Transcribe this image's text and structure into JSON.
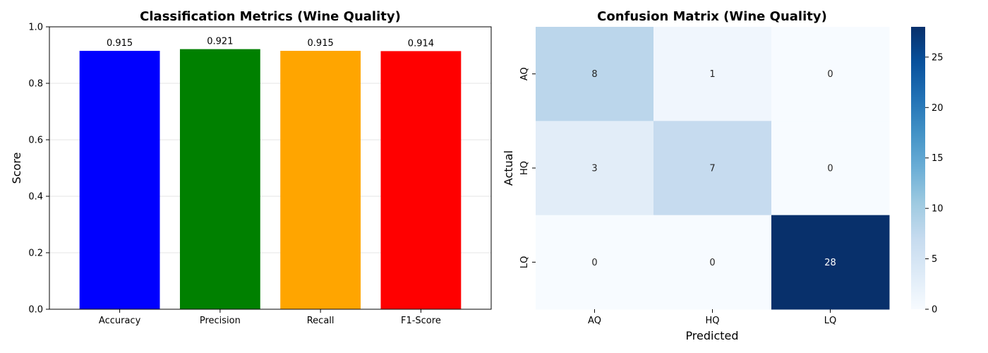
{
  "chart_data": [
    {
      "type": "bar",
      "title": "Classification Metrics (Wine Quality)",
      "xlabel": "",
      "ylabel": "Score",
      "categories": [
        "Accuracy",
        "Precision",
        "Recall",
        "F1-Score"
      ],
      "values": [
        0.915,
        0.921,
        0.915,
        0.914
      ],
      "value_labels": [
        "0.915",
        "0.921",
        "0.915",
        "0.914"
      ],
      "colors": [
        "#0000ff",
        "#008000",
        "#ffa500",
        "#ff0000"
      ],
      "ylim": [
        0,
        1.0
      ],
      "yticks": [
        0.0,
        0.2,
        0.4,
        0.6,
        0.8,
        1.0
      ],
      "ytick_labels": [
        "0.0",
        "0.2",
        "0.4",
        "0.6",
        "0.8",
        "1.0"
      ],
      "grid": "horizontal, light"
    },
    {
      "type": "heatmap",
      "title": "Confusion Matrix (Wine Quality)",
      "xlabel": "Predicted",
      "ylabel": "Actual",
      "x_categories": [
        "AQ",
        "HQ",
        "LQ"
      ],
      "y_categories": [
        "AQ",
        "HQ",
        "LQ"
      ],
      "matrix": [
        [
          8,
          1,
          0
        ],
        [
          3,
          7,
          0
        ],
        [
          0,
          0,
          28
        ]
      ],
      "colormap": "Blues",
      "colorbar_range": [
        0,
        28
      ],
      "colorbar_ticks": [
        0,
        5,
        10,
        15,
        20,
        25
      ],
      "colorbar_tick_labels": [
        "0",
        "5",
        "10",
        "15",
        "20",
        "25"
      ]
    }
  ]
}
